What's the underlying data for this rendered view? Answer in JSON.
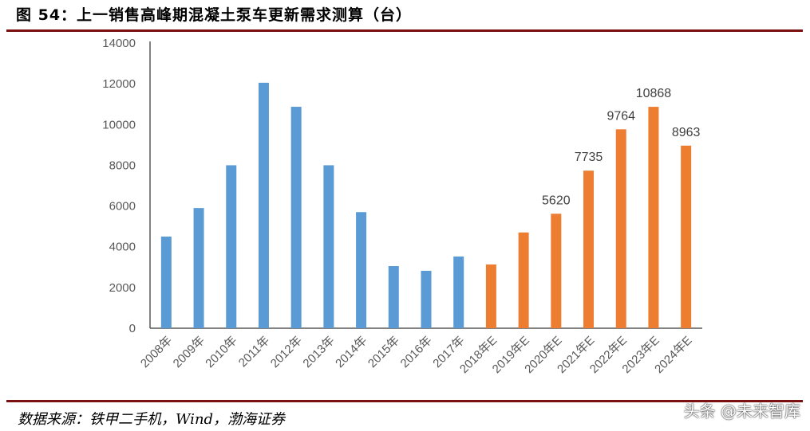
{
  "header": {
    "title": "图 54：上一销售高峰期混凝土泵车更新需求测算（台）"
  },
  "footer": {
    "source": "数据来源：铁甲二手机，Wind，渤海证券",
    "watermark": "头条 @未来智库"
  },
  "chart_data": {
    "type": "bar",
    "title": "",
    "xlabel": "",
    "ylabel": "",
    "ylim": [
      0,
      14000
    ],
    "yticks": [
      0,
      2000,
      4000,
      6000,
      8000,
      10000,
      12000,
      14000
    ],
    "grid": false,
    "categories": [
      "2008年",
      "2009年",
      "2010年",
      "2011年",
      "2012年",
      "2013年",
      "2014年",
      "2015年",
      "2016年",
      "2017年",
      "2018年E",
      "2019年E",
      "2020年E",
      "2021年E",
      "2022年E",
      "2023年E",
      "2024年E"
    ],
    "values": [
      4500,
      5900,
      8000,
      12050,
      10870,
      8000,
      5700,
      3050,
      2820,
      3520,
      3130,
      4700,
      5620,
      7735,
      9764,
      10868,
      8963
    ],
    "data_labels": [
      null,
      null,
      null,
      null,
      null,
      null,
      null,
      null,
      null,
      null,
      null,
      null,
      "5620",
      "7735",
      "9764",
      "10868",
      "8963"
    ],
    "colors": {
      "actual": "#5b9bd5",
      "estimate": "#ed7d31"
    },
    "bar_colors": [
      "actual",
      "actual",
      "actual",
      "actual",
      "actual",
      "actual",
      "actual",
      "actual",
      "actual",
      "actual",
      "estimate",
      "estimate",
      "estimate",
      "estimate",
      "estimate",
      "estimate",
      "estimate"
    ]
  }
}
